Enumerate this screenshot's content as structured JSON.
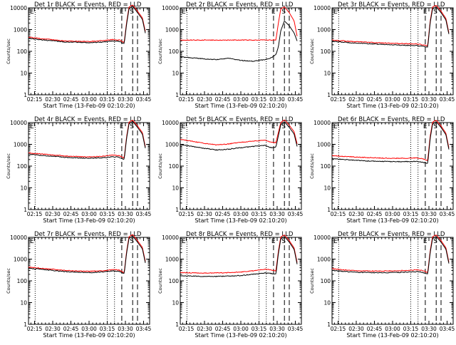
{
  "figure": {
    "xtick_labels": [
      "02:15",
      "02:30",
      "02:45",
      "03:00",
      "03:15",
      "03:30",
      "03:45"
    ],
    "ytick_labels": [
      "1",
      "10",
      "100",
      "1000",
      "10000"
    ],
    "xlabel": "Start Time (13-Feb-09 02:10:20)",
    "ylabel": "Counts/sec",
    "corner_symbols": [
      "E",
      "S"
    ],
    "colors": {
      "events": "#000000",
      "lld": "#ff0000"
    }
  },
  "chart_data": [
    {
      "type": "line",
      "title": "Det 1r BLACK = Events, RED = LLD",
      "x_unit": "minutes after 02:10",
      "xlim": [
        0,
        100
      ],
      "ylim": [
        1,
        10000
      ],
      "yscale": "log",
      "x": [
        0,
        10,
        20,
        30,
        40,
        50,
        60,
        70,
        75,
        79,
        81,
        83,
        86,
        90,
        94,
        97
      ],
      "series": [
        {
          "name": "Events",
          "color": "#000000",
          "values": [
            400,
            340,
            305,
            270,
            260,
            250,
            265,
            305,
            285,
            220,
            1800,
            9000,
            12000,
            6000,
            3000,
            500
          ]
        },
        {
          "name": "LLD",
          "color": "#ff0000",
          "values": [
            450,
            380,
            345,
            300,
            290,
            285,
            305,
            350,
            330,
            260,
            2200,
            11000,
            13500,
            7000,
            3500,
            600
          ]
        }
      ],
      "vlines_dotted": [
        5.5,
        65,
        71
      ],
      "vlines_dashed": [
        77,
        86,
        90
      ]
    },
    {
      "type": "line",
      "title": "Det 2r BLACK = Events, RED = LLD",
      "x_unit": "minutes after 02:10",
      "xlim": [
        0,
        100
      ],
      "ylim": [
        1,
        10000
      ],
      "yscale": "log",
      "x": [
        0,
        10,
        20,
        30,
        40,
        50,
        60,
        70,
        75,
        79,
        81,
        83,
        86,
        90,
        94,
        97
      ],
      "series": [
        {
          "name": "Events",
          "color": "#000000",
          "values": [
            55,
            50,
            45,
            42,
            48,
            38,
            35,
            42,
            50,
            70,
            160,
            900,
            2500,
            1500,
            700,
            250
          ]
        },
        {
          "name": "LLD",
          "color": "#ff0000",
          "values": [
            330,
            330,
            330,
            330,
            330,
            330,
            330,
            330,
            330,
            340,
            2000,
            9000,
            11000,
            6000,
            2500,
            350
          ]
        }
      ],
      "vlines_dotted": [
        5.5,
        65,
        71
      ],
      "vlines_dashed": [
        77,
        86,
        90
      ]
    },
    {
      "type": "line",
      "title": "Det 3r BLACK = Events, RED = LLD",
      "x_unit": "minutes after 02:10",
      "xlim": [
        0,
        100
      ],
      "ylim": [
        1,
        10000
      ],
      "yscale": "log",
      "x": [
        0,
        10,
        20,
        30,
        40,
        50,
        60,
        70,
        75,
        79,
        81,
        83,
        86,
        90,
        94,
        97
      ],
      "series": [
        {
          "name": "Events",
          "color": "#000000",
          "values": [
            290,
            260,
            240,
            225,
            210,
            200,
            190,
            185,
            170,
            150,
            2000,
            9000,
            11000,
            6000,
            2800,
            450
          ]
        },
        {
          "name": "LLD",
          "color": "#ff0000",
          "values": [
            330,
            300,
            275,
            260,
            245,
            235,
            225,
            220,
            200,
            180,
            2400,
            11000,
            13000,
            7000,
            3300,
            520
          ]
        }
      ],
      "vlines_dotted": [
        5.5,
        65,
        71
      ],
      "vlines_dashed": [
        77,
        86,
        90
      ]
    },
    {
      "type": "line",
      "title": "Det 4r BLACK = Events, RED = LLD",
      "x_unit": "minutes after 02:10",
      "xlim": [
        0,
        100
      ],
      "ylim": [
        1,
        10000
      ],
      "yscale": "log",
      "x": [
        0,
        10,
        20,
        30,
        40,
        50,
        60,
        70,
        75,
        79,
        81,
        83,
        86,
        90,
        94,
        97
      ],
      "series": [
        {
          "name": "Events",
          "color": "#000000",
          "values": [
            360,
            310,
            285,
            255,
            240,
            230,
            240,
            270,
            255,
            200,
            1900,
            8800,
            11500,
            6000,
            3000,
            480
          ]
        },
        {
          "name": "LLD",
          "color": "#ff0000",
          "values": [
            410,
            360,
            330,
            290,
            275,
            265,
            280,
            320,
            300,
            235,
            2300,
            10500,
            13000,
            7000,
            3500,
            560
          ]
        }
      ],
      "vlines_dotted": [
        5.5,
        65,
        71
      ],
      "vlines_dashed": [
        77,
        86,
        90
      ]
    },
    {
      "type": "line",
      "title": "Det 5r BLACK = Events, RED = LLD",
      "x_unit": "minutes after 02:10",
      "xlim": [
        0,
        100
      ],
      "ylim": [
        1,
        10000
      ],
      "yscale": "log",
      "x": [
        0,
        10,
        20,
        30,
        40,
        50,
        60,
        70,
        75,
        79,
        81,
        83,
        86,
        90,
        94,
        97
      ],
      "series": [
        {
          "name": "Events",
          "color": "#000000",
          "values": [
            1000,
            800,
            650,
            550,
            600,
            700,
            800,
            900,
            700,
            750,
            2500,
            8000,
            11000,
            6000,
            3000,
            600
          ]
        },
        {
          "name": "LLD",
          "color": "#ff0000",
          "values": [
            1700,
            1400,
            1100,
            950,
            1050,
            1250,
            1400,
            1550,
            1250,
            1200,
            3500,
            10000,
            13500,
            7500,
            3800,
            800
          ]
        }
      ],
      "vlines_dotted": [
        5.5,
        65,
        71
      ],
      "vlines_dashed": [
        77,
        86,
        90
      ]
    },
    {
      "type": "line",
      "title": "Det 6r BLACK = Events, RED = LLD",
      "x_unit": "minutes after 02:10",
      "xlim": [
        0,
        100
      ],
      "ylim": [
        1,
        10000
      ],
      "yscale": "log",
      "x": [
        0,
        10,
        20,
        30,
        40,
        50,
        60,
        70,
        75,
        79,
        81,
        83,
        86,
        90,
        94,
        97
      ],
      "series": [
        {
          "name": "Events",
          "color": "#000000",
          "values": [
            220,
            200,
            185,
            170,
            165,
            160,
            160,
            165,
            150,
            130,
            1800,
            8500,
            11000,
            6000,
            2800,
            420
          ]
        },
        {
          "name": "LLD",
          "color": "#ff0000",
          "values": [
            300,
            280,
            260,
            245,
            235,
            230,
            230,
            240,
            215,
            185,
            2300,
            10500,
            13000,
            7000,
            3300,
            500
          ]
        }
      ],
      "vlines_dotted": [
        5.5,
        65,
        71
      ],
      "vlines_dashed": [
        77,
        86,
        90
      ]
    },
    {
      "type": "line",
      "title": "Det 7r BLACK = Events, RED = LLD",
      "x_unit": "minutes after 02:10",
      "xlim": [
        0,
        100
      ],
      "ylim": [
        1,
        10000
      ],
      "yscale": "log",
      "x": [
        0,
        10,
        20,
        30,
        40,
        50,
        60,
        70,
        75,
        79,
        81,
        83,
        86,
        90,
        94,
        97
      ],
      "series": [
        {
          "name": "Events",
          "color": "#000000",
          "values": [
            380,
            340,
            300,
            265,
            250,
            240,
            255,
            290,
            270,
            210,
            1900,
            9000,
            11500,
            6000,
            3000,
            480
          ]
        },
        {
          "name": "LLD",
          "color": "#ff0000",
          "values": [
            430,
            380,
            340,
            300,
            285,
            275,
            290,
            330,
            310,
            240,
            2300,
            10800,
            13500,
            7000,
            3500,
            560
          ]
        }
      ],
      "vlines_dotted": [
        5.5,
        65,
        71
      ],
      "vlines_dashed": [
        77,
        86,
        90
      ]
    },
    {
      "type": "line",
      "title": "Det 8r BLACK = Events, RED = LLD",
      "x_unit": "minutes after 02:10",
      "xlim": [
        0,
        100
      ],
      "ylim": [
        1,
        10000
      ],
      "yscale": "log",
      "x": [
        0,
        10,
        20,
        30,
        40,
        50,
        60,
        70,
        75,
        79,
        81,
        83,
        86,
        90,
        94,
        97
      ],
      "series": [
        {
          "name": "Events",
          "color": "#000000",
          "values": [
            170,
            165,
            160,
            160,
            165,
            175,
            200,
            230,
            220,
            200,
            1800,
            8500,
            11000,
            6000,
            2800,
            420
          ]
        },
        {
          "name": "LLD",
          "color": "#ff0000",
          "values": [
            240,
            235,
            230,
            230,
            240,
            255,
            290,
            340,
            320,
            290,
            2300,
            10500,
            13000,
            7000,
            3300,
            500
          ]
        }
      ],
      "vlines_dotted": [
        5.5,
        65,
        71
      ],
      "vlines_dashed": [
        77,
        86,
        90
      ]
    },
    {
      "type": "line",
      "title": "Det 9r BLACK = Events, RED = LLD",
      "x_unit": "minutes after 02:10",
      "xlim": [
        0,
        100
      ],
      "ylim": [
        1,
        10000
      ],
      "yscale": "log",
      "x": [
        0,
        10,
        20,
        30,
        40,
        50,
        60,
        70,
        75,
        79,
        81,
        83,
        86,
        90,
        94,
        97
      ],
      "series": [
        {
          "name": "Events",
          "color": "#000000",
          "values": [
            300,
            270,
            250,
            240,
            235,
            240,
            250,
            265,
            245,
            200,
            1900,
            8800,
            11000,
            6000,
            2900,
            450
          ]
        },
        {
          "name": "LLD",
          "color": "#ff0000",
          "values": [
            360,
            320,
            295,
            285,
            280,
            285,
            300,
            320,
            295,
            240,
            2300,
            10800,
            13000,
            7000,
            3400,
            530
          ]
        }
      ],
      "vlines_dotted": [
        5.5,
        65,
        71
      ],
      "vlines_dashed": [
        77,
        86,
        90
      ]
    }
  ]
}
